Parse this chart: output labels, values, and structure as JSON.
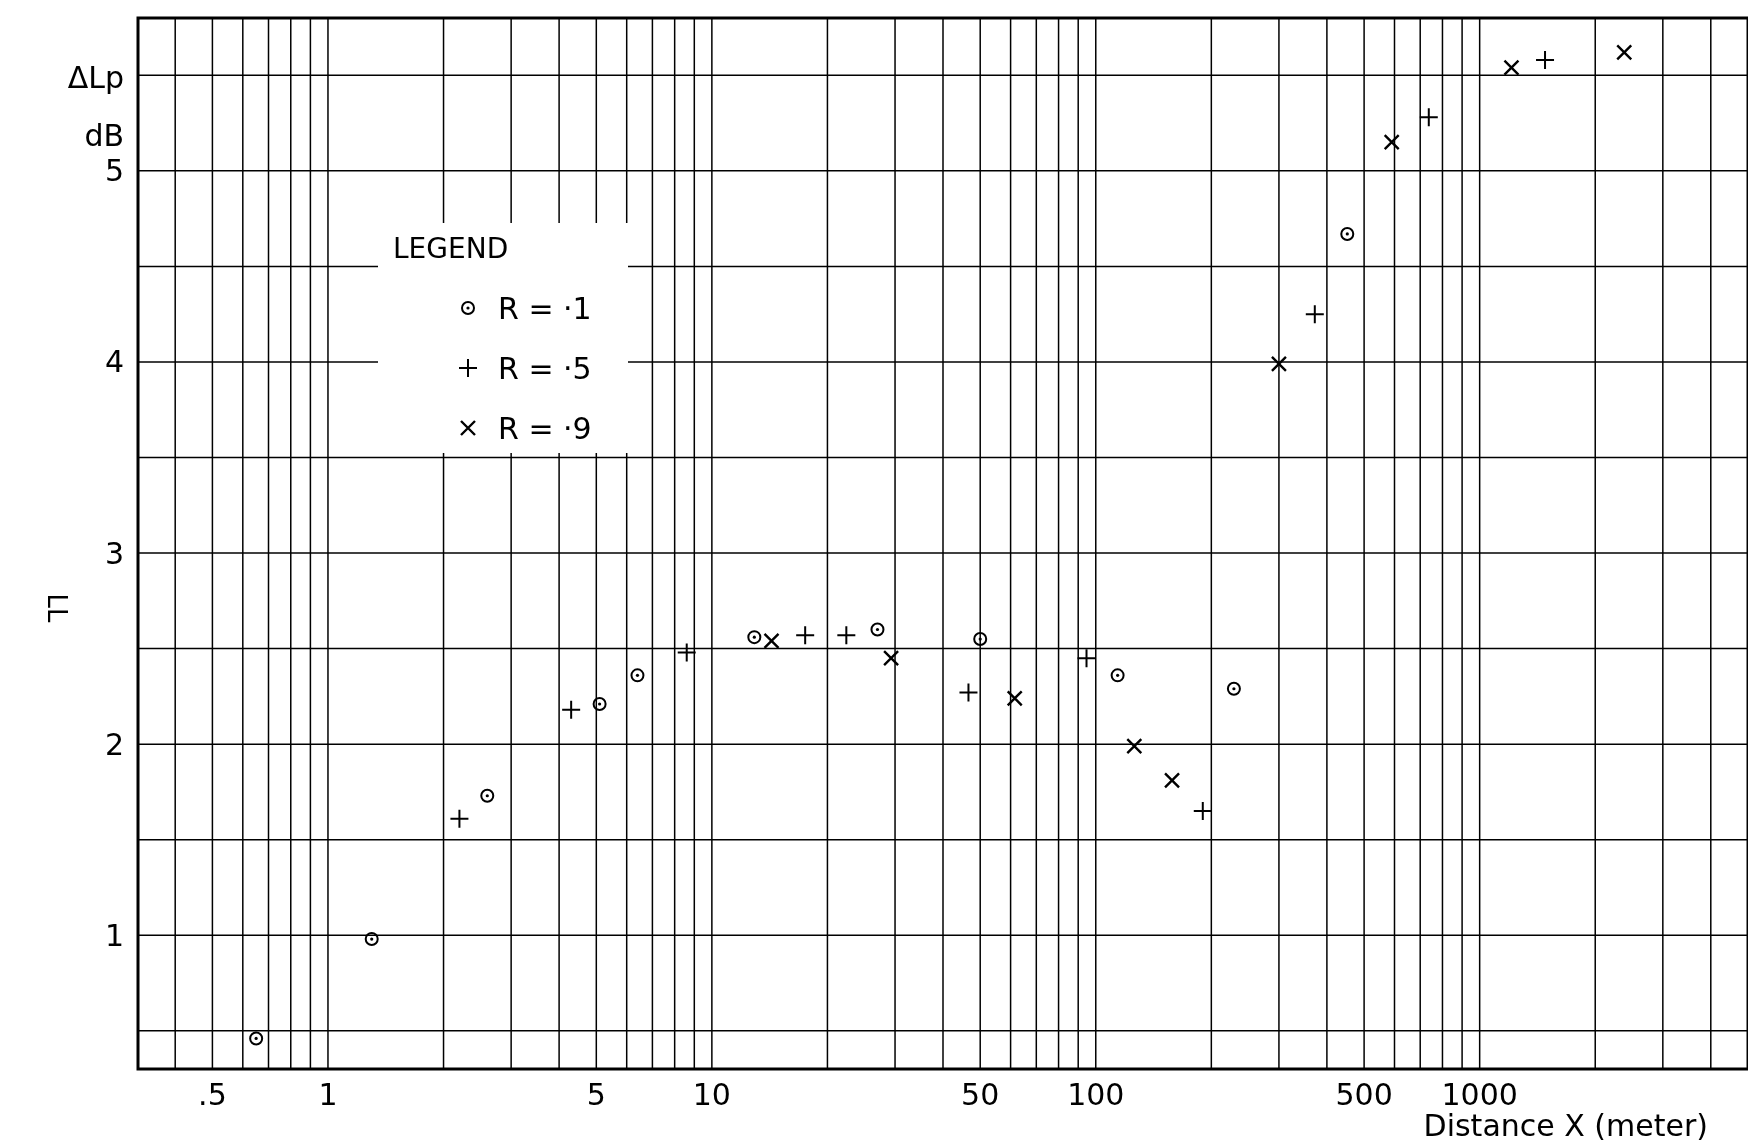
{
  "chart_data": {
    "type": "scatter",
    "xlabel": "Distance  X (meter)",
    "ylabel": "ΔLp\ndB",
    "annotations": [
      "LL"
    ],
    "log": "x",
    "grid": true,
    "legend": "top left",
    "legend_title": "LEGEND",
    "xlim": [
      0.32,
      5000
    ],
    "ylim": [
      0.3,
      5.8
    ],
    "xticks": [
      {
        "value": 0.4,
        "label": null
      },
      {
        "value": 0.5,
        "label": ".5"
      },
      {
        "value": 0.6,
        "label": null
      },
      {
        "value": 0.7,
        "label": null
      },
      {
        "value": 0.8,
        "label": null
      },
      {
        "value": 0.9,
        "label": null
      },
      1,
      {
        "value": 2,
        "label": null
      },
      {
        "value": 3,
        "label": null
      },
      {
        "value": 4,
        "label": null
      },
      5,
      {
        "value": 6,
        "label": null
      },
      {
        "value": 7,
        "label": null
      },
      {
        "value": 8,
        "label": null
      },
      {
        "value": 9,
        "label": null
      },
      10,
      {
        "value": 20,
        "label": null
      },
      {
        "value": 30,
        "label": null
      },
      {
        "value": 40,
        "label": null
      },
      50,
      {
        "value": 60,
        "label": null
      },
      {
        "value": 70,
        "label": null
      },
      {
        "value": 80,
        "label": null
      },
      {
        "value": 90,
        "label": null
      },
      100,
      {
        "value": 200,
        "label": null
      },
      {
        "value": 300,
        "label": null
      },
      {
        "value": 400,
        "label": null
      },
      500,
      {
        "value": 600,
        "label": null
      },
      {
        "value": 700,
        "label": null
      },
      {
        "value": 800,
        "label": null
      },
      {
        "value": 900,
        "label": null
      },
      1000,
      {
        "value": 2000,
        "label": null
      },
      {
        "value": 3000,
        "label": null
      },
      {
        "value": 4000,
        "label": null
      }
    ],
    "yticks": [
      {
        "value": 0.5,
        "label": null
      },
      1,
      {
        "value": 1.5,
        "label": null
      },
      2,
      {
        "value": 2.5,
        "label": null
      },
      3,
      {
        "value": 3.5,
        "label": null
      },
      4,
      {
        "value": 4.5,
        "label": null
      },
      5,
      {
        "value": 5.5,
        "label": null
      }
    ],
    "series": [
      {
        "name": "R = ·1",
        "color": "#000000",
        "marker": "circle",
        "x": [
          0.65,
          1.3,
          2.6,
          5.1,
          6.4,
          12.9,
          27,
          50,
          114,
          229,
          452
        ],
        "values": [
          0.46,
          0.98,
          1.73,
          2.21,
          2.36,
          2.56,
          2.6,
          2.55,
          2.36,
          2.29,
          4.67
        ]
      },
      {
        "name": "R = ·5",
        "color": "#000000",
        "marker": "plus",
        "x": [
          2.2,
          4.3,
          8.6,
          17.5,
          22.4,
          46.6,
          94.6,
          190,
          372,
          737,
          1480
        ],
        "values": [
          1.61,
          2.18,
          2.48,
          2.57,
          2.57,
          2.27,
          2.45,
          1.65,
          4.25,
          5.28,
          5.58
        ]
      },
      {
        "name": "R = ·9",
        "color": "#000000",
        "marker": "cross",
        "x": [
          14.3,
          29.3,
          61.5,
          126,
          158,
          300,
          590,
          1210,
          2380
        ],
        "values": [
          2.54,
          2.45,
          2.24,
          1.99,
          1.81,
          3.99,
          5.15,
          5.54,
          5.62
        ]
      }
    ]
  }
}
